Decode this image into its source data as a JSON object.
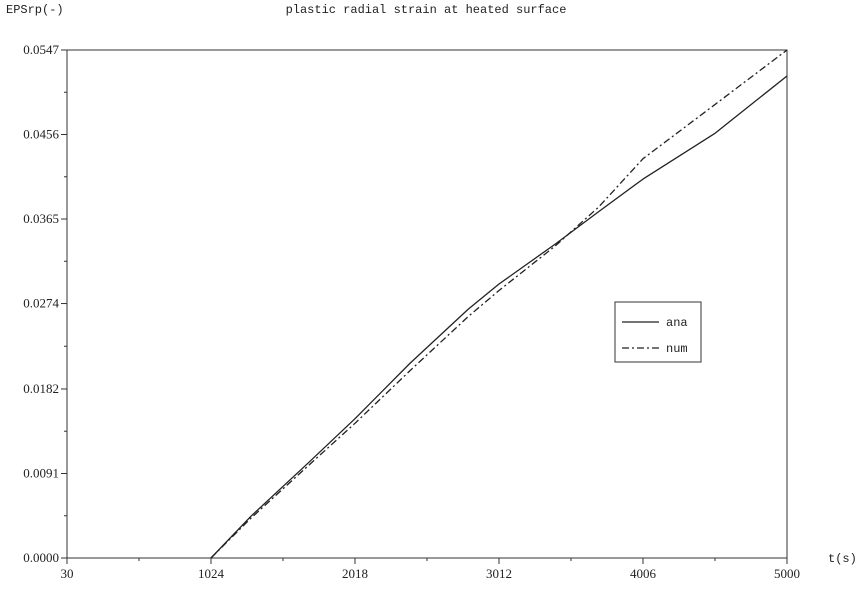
{
  "chart_data": {
    "type": "line",
    "title": "plastic radial strain at heated surface",
    "ylabel": "EPSrp(-)",
    "xlabel": "t(s)",
    "xlim": [
      30,
      5000
    ],
    "ylim": [
      0.0,
      0.0547
    ],
    "x_ticks": [
      "30",
      "1024",
      "2018",
      "3012",
      "4006",
      "5000"
    ],
    "y_ticks": [
      "0.0000",
      "0.0091",
      "0.0182",
      "0.0274",
      "0.0365",
      "0.0456",
      "0.0547"
    ],
    "x_tick_values": [
      30,
      1024,
      2018,
      3012,
      4006,
      5000
    ],
    "y_tick_values": [
      0.0,
      0.0091,
      0.0182,
      0.0274,
      0.0365,
      0.0456,
      0.0547
    ],
    "legend": {
      "position": "right"
    },
    "series": [
      {
        "name": "ana",
        "style": "solid",
        "x": [
          1024,
          1300,
          1700,
          2018,
          2400,
          2800,
          3012,
          3400,
          3700,
          4006,
          4500,
          5000
        ],
        "y": [
          0.0,
          0.0045,
          0.0103,
          0.015,
          0.021,
          0.0268,
          0.0295,
          0.0338,
          0.0373,
          0.0408,
          0.0457,
          0.0519
        ]
      },
      {
        "name": "num",
        "style": "dashdot",
        "x": [
          1024,
          1300,
          1700,
          2018,
          2400,
          2800,
          3012,
          3400,
          3700,
          4006,
          4500,
          5000
        ],
        "y": [
          0.0,
          0.0043,
          0.01,
          0.0145,
          0.0202,
          0.026,
          0.0288,
          0.0336,
          0.0378,
          0.043,
          0.0488,
          0.0547
        ]
      }
    ]
  }
}
